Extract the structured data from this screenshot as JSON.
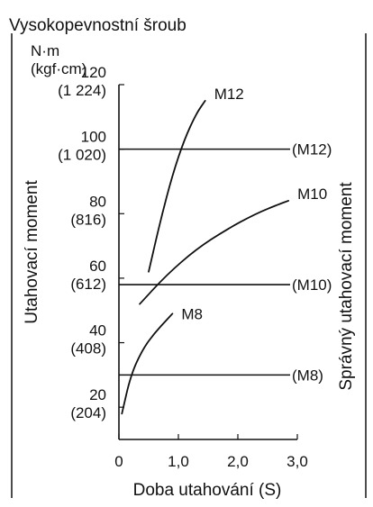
{
  "chart_data": {
    "type": "line",
    "title": "Vysokopevnostní šroub",
    "unit_line1": "N·m",
    "unit_line2": "(kgf·cm)",
    "xlabel": "Doba utahování (S)",
    "ylabel": "Utahovací moment",
    "right_label": "Správný utahovací moment",
    "xlim": [
      0,
      3.0
    ],
    "ylim": [
      10,
      120
    ],
    "x_ticks": [
      {
        "value": 0,
        "label": "0"
      },
      {
        "value": 1.0,
        "label": "1,0"
      },
      {
        "value": 2.0,
        "label": "2,0"
      },
      {
        "value": 3.0,
        "label": "3,0"
      }
    ],
    "y_ticks": [
      {
        "value": 120,
        "label": "120",
        "sublabel": "(1 224)"
      },
      {
        "value": 100,
        "label": "100",
        "sublabel": "(1 020)"
      },
      {
        "value": 80,
        "label": "80",
        "sublabel": "(816)"
      },
      {
        "value": 60,
        "label": "60",
        "sublabel": "(612)"
      },
      {
        "value": 40,
        "label": "40",
        "sublabel": "(408)"
      },
      {
        "value": 20,
        "label": "20",
        "sublabel": "(204)"
      }
    ],
    "series": [
      {
        "name": "M12",
        "x": [
          0.5,
          0.7,
          0.9,
          1.1,
          1.3,
          1.45
        ],
        "y": [
          62,
          78,
          92,
          103,
          111,
          115
        ]
      },
      {
        "name": "M10",
        "x": [
          0.35,
          0.8,
          1.3,
          1.8,
          2.3,
          2.7,
          2.85
        ],
        "y": [
          52,
          61,
          69,
          75,
          80,
          83,
          84
        ]
      },
      {
        "name": "M8",
        "x": [
          0.05,
          0.2,
          0.4,
          0.6,
          0.8,
          0.9
        ],
        "y": [
          18,
          30,
          38,
          43,
          47,
          49
        ]
      }
    ],
    "correct_torque": [
      {
        "name": "(M12)",
        "value": 100
      },
      {
        "name": "(M10)",
        "value": 58
      },
      {
        "name": "(M8)",
        "value": 30
      }
    ]
  }
}
